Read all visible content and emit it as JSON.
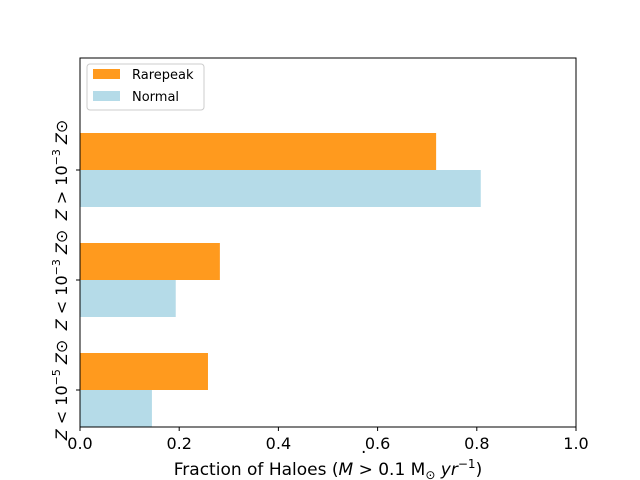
{
  "chart_data": {
    "type": "bar",
    "orientation": "horizontal",
    "categories": [
      "Z < 10^-5 Z⊙",
      "Z < 10^-3 Z⊙",
      "Z > 10^-3 Z⊙"
    ],
    "category_labels": [
      {
        "base": "Z < 10",
        "exp": "−5",
        "tail": " Z⊙"
      },
      {
        "base": "Z < 10",
        "exp": "−3",
        "tail": " Z⊙"
      },
      {
        "base": "Z > 10",
        "exp": "−3",
        "tail": " Z⊙"
      }
    ],
    "series": [
      {
        "name": "Rarepeak",
        "color": "#ff9a1e",
        "values": [
          0.258,
          0.282,
          0.718
        ]
      },
      {
        "name": "Normal",
        "color": "#b5dbe8",
        "values": [
          0.145,
          0.193,
          0.808
        ]
      }
    ],
    "xlabel": {
      "text_before": "Fraction of Haloes (",
      "mdot": "M",
      "middle": " > 0.1 M",
      "sub": "⊙",
      "unit": " yr",
      "exp": "−1",
      "text_after": ")"
    },
    "ylabel": "",
    "xlim": [
      0,
      1.0
    ],
    "x_ticks": [
      "0.0",
      "0.2",
      "0.4",
      "0.6",
      "0.8",
      "1.0"
    ],
    "grid": false,
    "legend_position": "top-left"
  }
}
